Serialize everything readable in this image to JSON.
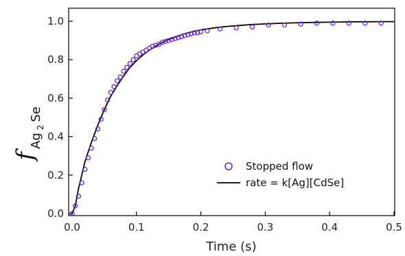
{
  "chart_data": {
    "type": "scatter",
    "xlabel": "Time (s)",
    "ylabel": {
      "symbol": "f",
      "subscript": "Ag",
      "subsubscript": "2",
      "subscript_tail": "Se"
    },
    "xlim": [
      0.0,
      0.5
    ],
    "ylim": [
      0.0,
      1.05
    ],
    "xticks": [
      "0.0",
      "0.1",
      "0.2",
      "0.3",
      "0.4",
      "0.5"
    ],
    "yticks": [
      "0.0",
      "0.2",
      "0.4",
      "0.6",
      "0.8",
      "1.0"
    ],
    "grid": false,
    "legend_position": "bottom-right",
    "series": [
      {
        "name": "Stopped flow",
        "kind": "markers",
        "color": "#6a22d6",
        "marker": "open-circle",
        "x": [
          0.0,
          0.005,
          0.01,
          0.015,
          0.02,
          0.025,
          0.03,
          0.035,
          0.04,
          0.045,
          0.05,
          0.055,
          0.06,
          0.065,
          0.07,
          0.075,
          0.08,
          0.085,
          0.09,
          0.095,
          0.1,
          0.105,
          0.11,
          0.115,
          0.12,
          0.125,
          0.13,
          0.135,
          0.14,
          0.145,
          0.15,
          0.155,
          0.16,
          0.165,
          0.17,
          0.175,
          0.18,
          0.185,
          0.19,
          0.195,
          0.2,
          0.21,
          0.23,
          0.255,
          0.28,
          0.305,
          0.33,
          0.355,
          0.38,
          0.405,
          0.43,
          0.455,
          0.48
        ],
        "y": [
          0.0,
          0.04,
          0.09,
          0.16,
          0.23,
          0.29,
          0.34,
          0.39,
          0.44,
          0.49,
          0.54,
          0.59,
          0.63,
          0.66,
          0.69,
          0.71,
          0.74,
          0.76,
          0.78,
          0.8,
          0.82,
          0.83,
          0.84,
          0.85,
          0.86,
          0.87,
          0.875,
          0.88,
          0.89,
          0.895,
          0.9,
          0.905,
          0.91,
          0.915,
          0.92,
          0.925,
          0.93,
          0.935,
          0.94,
          0.94,
          0.945,
          0.95,
          0.96,
          0.965,
          0.97,
          0.98,
          0.98,
          0.985,
          0.99,
          0.99,
          0.99,
          0.99,
          0.99
        ]
      },
      {
        "name": "rate = k[Ag][CdSe]",
        "kind": "line",
        "color": "#000000",
        "x": [
          0.0,
          0.005,
          0.01,
          0.015,
          0.02,
          0.025,
          0.03,
          0.04,
          0.05,
          0.06,
          0.07,
          0.08,
          0.09,
          0.1,
          0.11,
          0.12,
          0.13,
          0.14,
          0.15,
          0.16,
          0.17,
          0.18,
          0.19,
          0.2,
          0.22,
          0.24,
          0.26,
          0.28,
          0.3,
          0.32,
          0.34,
          0.36,
          0.38,
          0.4,
          0.42,
          0.44,
          0.46,
          0.48,
          0.5
        ],
        "y": [
          0.0,
          0.04,
          0.13,
          0.2,
          0.27,
          0.32,
          0.37,
          0.46,
          0.54,
          0.61,
          0.665,
          0.715,
          0.76,
          0.795,
          0.825,
          0.85,
          0.87,
          0.89,
          0.905,
          0.918,
          0.93,
          0.94,
          0.948,
          0.955,
          0.965,
          0.973,
          0.978,
          0.983,
          0.986,
          0.989,
          0.991,
          0.993,
          0.994,
          0.995,
          0.996,
          0.997,
          0.997,
          0.998,
          0.998
        ]
      }
    ]
  }
}
